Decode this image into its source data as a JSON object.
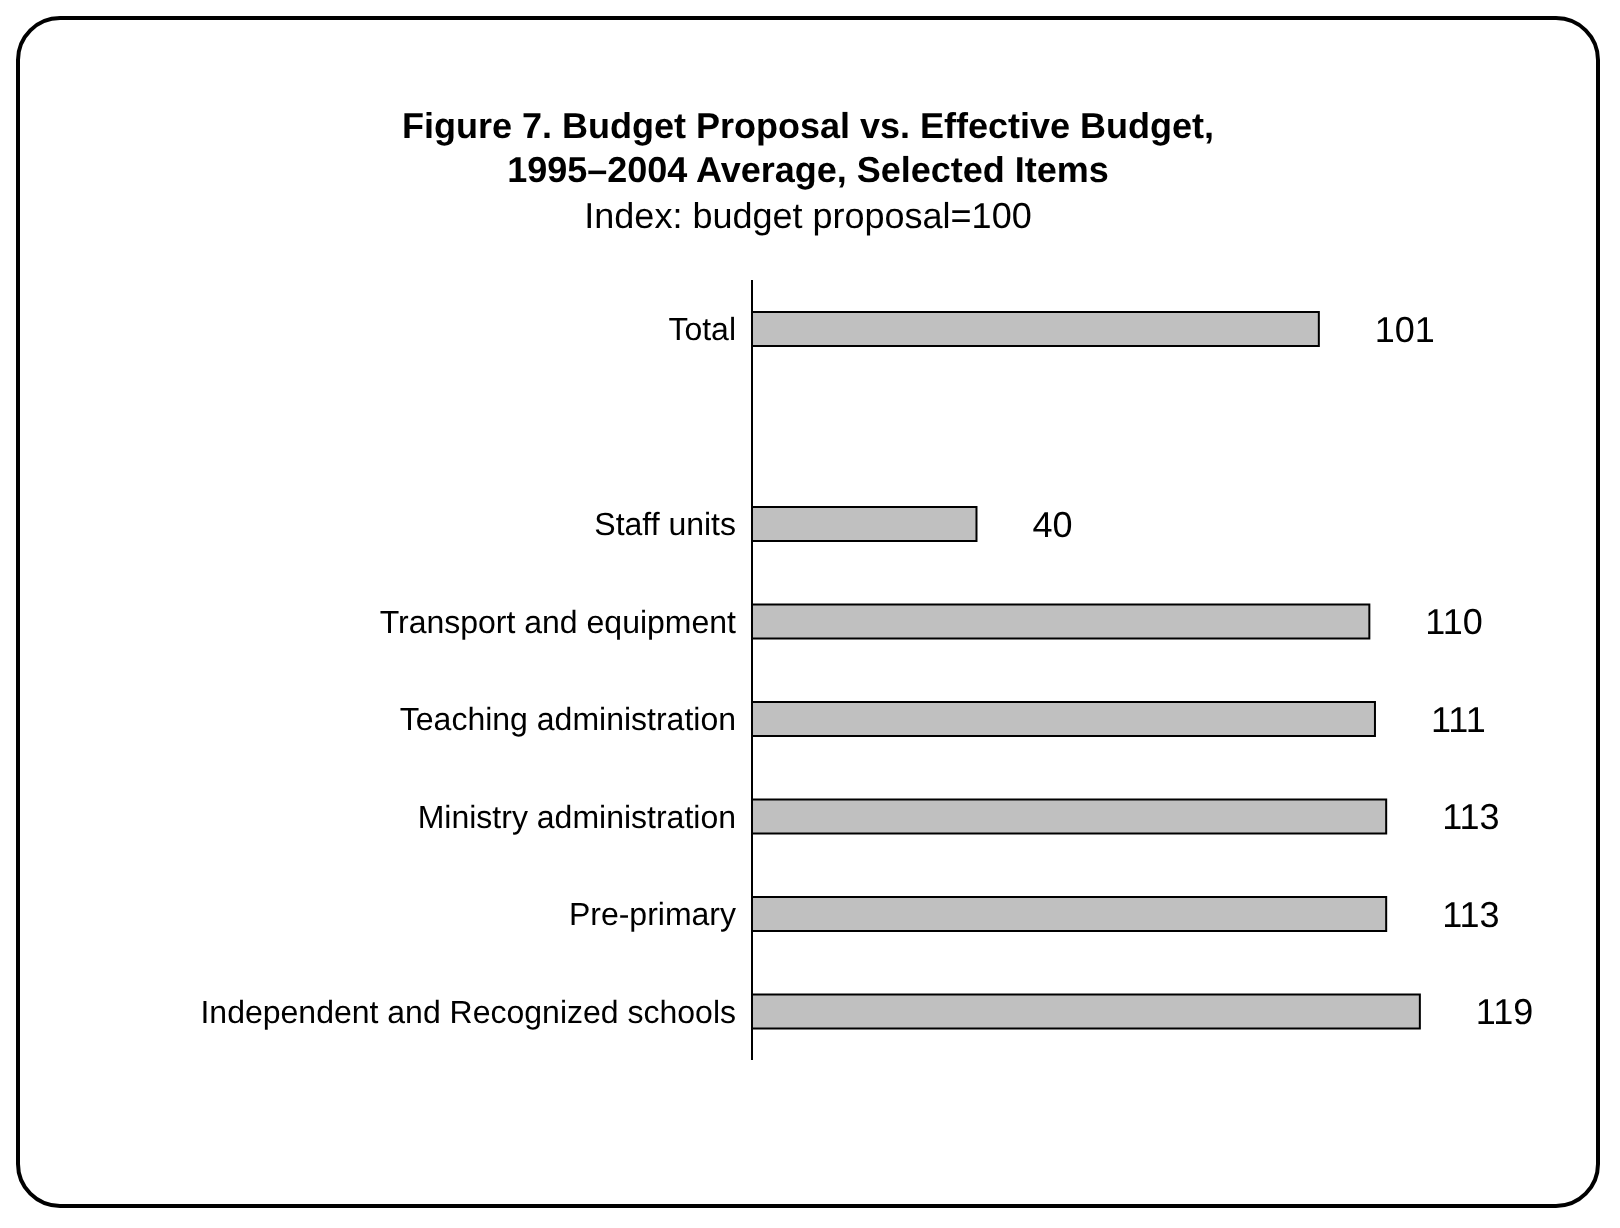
{
  "chart_data": {
    "type": "bar",
    "orientation": "horizontal",
    "title": "Figure 7. Budget Proposal vs. Effective Budget,\n1995–2004 Average, Selected Items",
    "subtitle": "Index: budget proposal=100",
    "categories": [
      "Total",
      null,
      "Staff units",
      "Transport and equipment",
      "Teaching administration",
      "Ministry administration",
      "Pre-primary",
      "Independent and Recognized schools"
    ],
    "values": [
      101,
      null,
      40,
      110,
      111,
      113,
      113,
      119
    ],
    "color": "#c0c0c0",
    "data_labels": true,
    "grid": false,
    "legend": false
  }
}
